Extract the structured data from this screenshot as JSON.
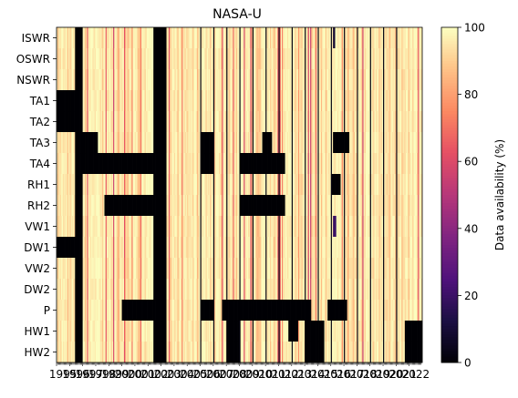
{
  "chart_data": {
    "type": "heatmap",
    "title": "NASA-U",
    "ylabel": "",
    "xlabel": "",
    "rows": [
      "ISWR",
      "OSWR",
      "NSWR",
      "TA1",
      "TA2",
      "TA3",
      "TA4",
      "RH1",
      "RH2",
      "VW1",
      "DW1",
      "VW2",
      "DW2",
      "P",
      "HW1",
      "HW2"
    ],
    "years": [
      1995,
      1996,
      1997,
      1998,
      1999,
      2000,
      2001,
      2002,
      2003,
      2004,
      2005,
      2006,
      2007,
      2008,
      2009,
      2010,
      2011,
      2012,
      2013,
      2014,
      2015,
      2016,
      2017,
      2018,
      2019,
      2020,
      2021,
      2022
    ],
    "x_tick_labels": [
      "1995",
      "1996",
      "1997",
      "1998",
      "1999",
      "2000",
      "2001",
      "2002",
      "2003",
      "2004",
      "2005",
      "2006",
      "2007",
      "2008",
      "2009",
      "2010",
      "2011",
      "2012",
      "2013",
      "2014",
      "2015",
      "2016",
      "2017",
      "2018",
      "2019",
      "2020",
      "2021",
      "2022"
    ],
    "columns_per_year": 12,
    "time_start": "1995-01",
    "time_end": "2022-12",
    "colorbar": {
      "label": "Data availability (%)",
      "min": 0,
      "max": 100,
      "ticks": [
        0,
        20,
        40,
        60,
        80,
        100
      ],
      "colormap": "magma"
    },
    "missing_spans": [
      {
        "row": "ALL",
        "from": "1996-06",
        "to": "1996-12",
        "value": 0
      },
      {
        "row": "ALL",
        "from": "2002-06",
        "to": "2003-05",
        "value": 0
      },
      {
        "row": "ISWR",
        "from": "2016-03",
        "to": "2016-04",
        "value": 10
      },
      {
        "row": "TA1",
        "from": "1995-01",
        "to": "1996-12",
        "value": 0
      },
      {
        "row": "TA2",
        "from": "1995-01",
        "to": "1996-12",
        "value": 0
      },
      {
        "row": "TA3",
        "from": "1996-06",
        "to": "1998-02",
        "value": 0
      },
      {
        "row": "TA3",
        "from": "2006-02",
        "to": "2006-12",
        "value": 0
      },
      {
        "row": "TA3",
        "from": "2010-10",
        "to": "2011-06",
        "value": 0
      },
      {
        "row": "TA3",
        "from": "2016-03",
        "to": "2017-05",
        "value": 0
      },
      {
        "row": "TA4",
        "from": "1996-06",
        "to": "2002-12",
        "value": 0
      },
      {
        "row": "TA4",
        "from": "2006-02",
        "to": "2006-12",
        "value": 0
      },
      {
        "row": "TA4",
        "from": "2009-01",
        "to": "2012-06",
        "value": 0
      },
      {
        "row": "RH1",
        "from": "2016-02",
        "to": "2016-09",
        "value": 0
      },
      {
        "row": "RH2",
        "from": "1998-09",
        "to": "2003-05",
        "value": 0
      },
      {
        "row": "RH2",
        "from": "2009-01",
        "to": "2012-06",
        "value": 0
      },
      {
        "row": "VW1",
        "from": "2016-03",
        "to": "2016-05",
        "value": 20
      },
      {
        "row": "DW1",
        "from": "1995-01",
        "to": "1996-12",
        "value": 0
      },
      {
        "row": "P",
        "from": "2000-01",
        "to": "2003-05",
        "value": 0
      },
      {
        "row": "P",
        "from": "2006-02",
        "to": "2006-12",
        "value": 0
      },
      {
        "row": "P",
        "from": "2007-09",
        "to": "2014-06",
        "value": 0
      },
      {
        "row": "P",
        "from": "2015-10",
        "to": "2017-03",
        "value": 0
      },
      {
        "row": "HW1",
        "from": "2008-01",
        "to": "2008-12",
        "value": 0
      },
      {
        "row": "HW1",
        "from": "2012-10",
        "to": "2013-06",
        "value": 0
      },
      {
        "row": "HW1",
        "from": "2014-01",
        "to": "2015-06",
        "value": 0
      },
      {
        "row": "HW1",
        "from": "2021-09",
        "to": "2022-12",
        "value": 0
      },
      {
        "row": "HW2",
        "from": "2008-01",
        "to": "2008-12",
        "value": 0
      },
      {
        "row": "HW2",
        "from": "2014-01",
        "to": "2015-06",
        "value": 0
      },
      {
        "row": "HW2",
        "from": "2021-09",
        "to": "2022-12",
        "value": 0
      }
    ],
    "dark_year_boundaries": [
      2006,
      2007,
      2008,
      2009,
      2010,
      2011,
      2012,
      2013,
      2014,
      2015,
      2016,
      2017,
      2018,
      2019,
      2020,
      2021
    ]
  }
}
